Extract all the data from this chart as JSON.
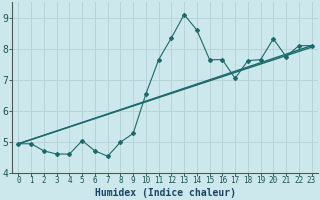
{
  "xlabel": "Humidex (Indice chaleur)",
  "bg_color": "#cce8ec",
  "grid_color": "#b8d4d8",
  "line_color": "#1a6b6b",
  "xlim": [
    -0.5,
    23.5
  ],
  "ylim": [
    4.0,
    9.5
  ],
  "xtick_labels": [
    "0",
    "1",
    "2",
    "3",
    "4",
    "5",
    "6",
    "7",
    "8",
    "9",
    "10",
    "11",
    "12",
    "13",
    "14",
    "15",
    "16",
    "17",
    "18",
    "19",
    "20",
    "21",
    "22",
    "23"
  ],
  "yticks": [
    4,
    5,
    6,
    7,
    8,
    9
  ],
  "series1_x": [
    0,
    1,
    2,
    3,
    4,
    5,
    6,
    7,
    8,
    9,
    10,
    11,
    12,
    13,
    14,
    15,
    16,
    17,
    18,
    19,
    20,
    21,
    22,
    23
  ],
  "series1_y": [
    4.95,
    4.95,
    4.72,
    4.62,
    4.62,
    5.05,
    4.72,
    4.55,
    5.0,
    5.28,
    6.55,
    7.65,
    8.35,
    9.1,
    8.6,
    7.65,
    7.65,
    7.05,
    7.62,
    7.65,
    8.32,
    7.75,
    8.1,
    8.1
  ],
  "series2_x": [
    0,
    23
  ],
  "series2_y": [
    4.95,
    8.05
  ],
  "series3_x": [
    0,
    23
  ],
  "series3_y": [
    4.95,
    8.1
  ],
  "figsize": [
    3.2,
    2.0
  ],
  "dpi": 100
}
